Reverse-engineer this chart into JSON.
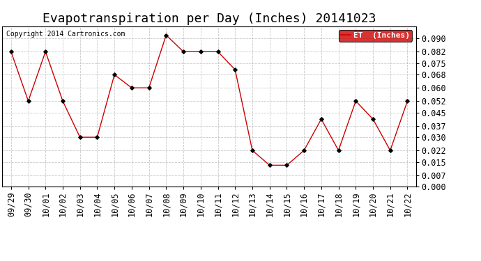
{
  "title": "Evapotranspiration per Day (Inches) 20141023",
  "copyright": "Copyright 2014 Cartronics.com",
  "legend_label": "ET  (Inches)",
  "legend_bg": "#cc0000",
  "line_color": "#cc0000",
  "marker_color": "#000000",
  "background_color": "#ffffff",
  "grid_color": "#bbbbbb",
  "dates": [
    "09/29",
    "09/30",
    "10/01",
    "10/02",
    "10/03",
    "10/04",
    "10/05",
    "10/06",
    "10/07",
    "10/08",
    "10/09",
    "10/10",
    "10/11",
    "10/12",
    "10/13",
    "10/14",
    "10/15",
    "10/16",
    "10/17",
    "10/18",
    "10/19",
    "10/20",
    "10/21",
    "10/22"
  ],
  "values": [
    0.082,
    0.052,
    0.082,
    0.052,
    0.03,
    0.03,
    0.068,
    0.06,
    0.06,
    0.092,
    0.082,
    0.082,
    0.082,
    0.071,
    0.022,
    0.013,
    0.013,
    0.022,
    0.041,
    0.022,
    0.052,
    0.041,
    0.022,
    0.052
  ],
  "ylim": [
    0.0,
    0.0975
  ],
  "yticks": [
    0.0,
    0.007,
    0.015,
    0.022,
    0.03,
    0.037,
    0.045,
    0.052,
    0.06,
    0.068,
    0.075,
    0.082,
    0.09
  ],
  "title_fontsize": 13,
  "copyright_fontsize": 7,
  "tick_fontsize": 8.5,
  "legend_fontsize": 8
}
